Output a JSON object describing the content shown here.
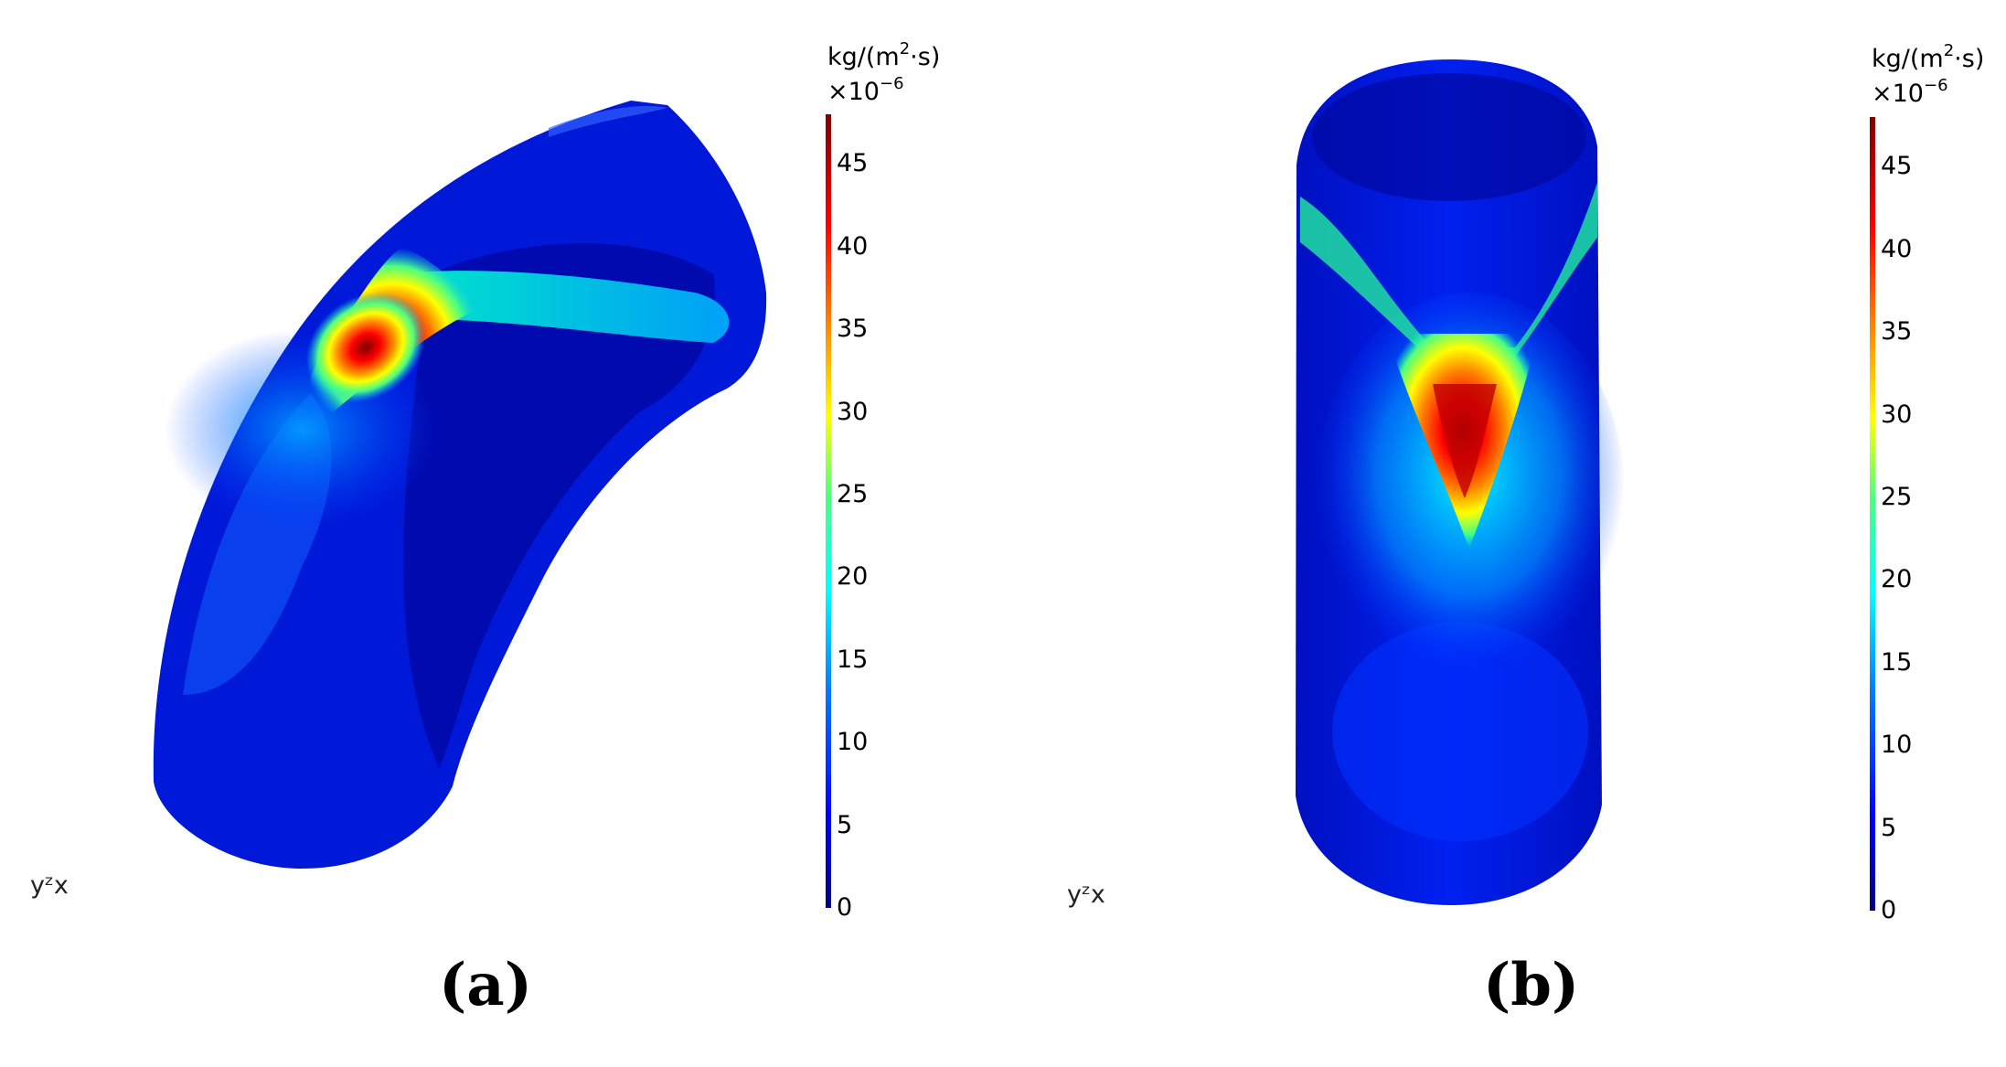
{
  "panels": [
    {
      "id": "a",
      "caption": "(a)",
      "colorbar": {
        "unit": "kg/(m",
        "unit_sup": "2",
        "unit_tail": "·s)",
        "multiplier": "×10",
        "multiplier_exp": "−6",
        "ticks": [
          "0",
          "5",
          "10",
          "15",
          "20",
          "25",
          "30",
          "35",
          "40",
          "45"
        ],
        "min": 0,
        "max": 48
      },
      "axis_triad": "yᶻx"
    },
    {
      "id": "b",
      "caption": "(b)",
      "colorbar": {
        "unit": "kg/(m",
        "unit_sup": "2",
        "unit_tail": "·s)",
        "multiplier": "×10",
        "multiplier_exp": "−6",
        "ticks": [
          "0",
          "5",
          "10",
          "15",
          "20",
          "25",
          "30",
          "35",
          "40",
          "45"
        ],
        "min": 0,
        "max": 48
      },
      "axis_triad": "yᶻx"
    }
  ],
  "colors": {
    "colormap": [
      "#00007f",
      "#0000ff",
      "#0080ff",
      "#00ffff",
      "#4dff80",
      "#ffff00",
      "#ff8000",
      "#ff0000",
      "#7f0000"
    ]
  }
}
